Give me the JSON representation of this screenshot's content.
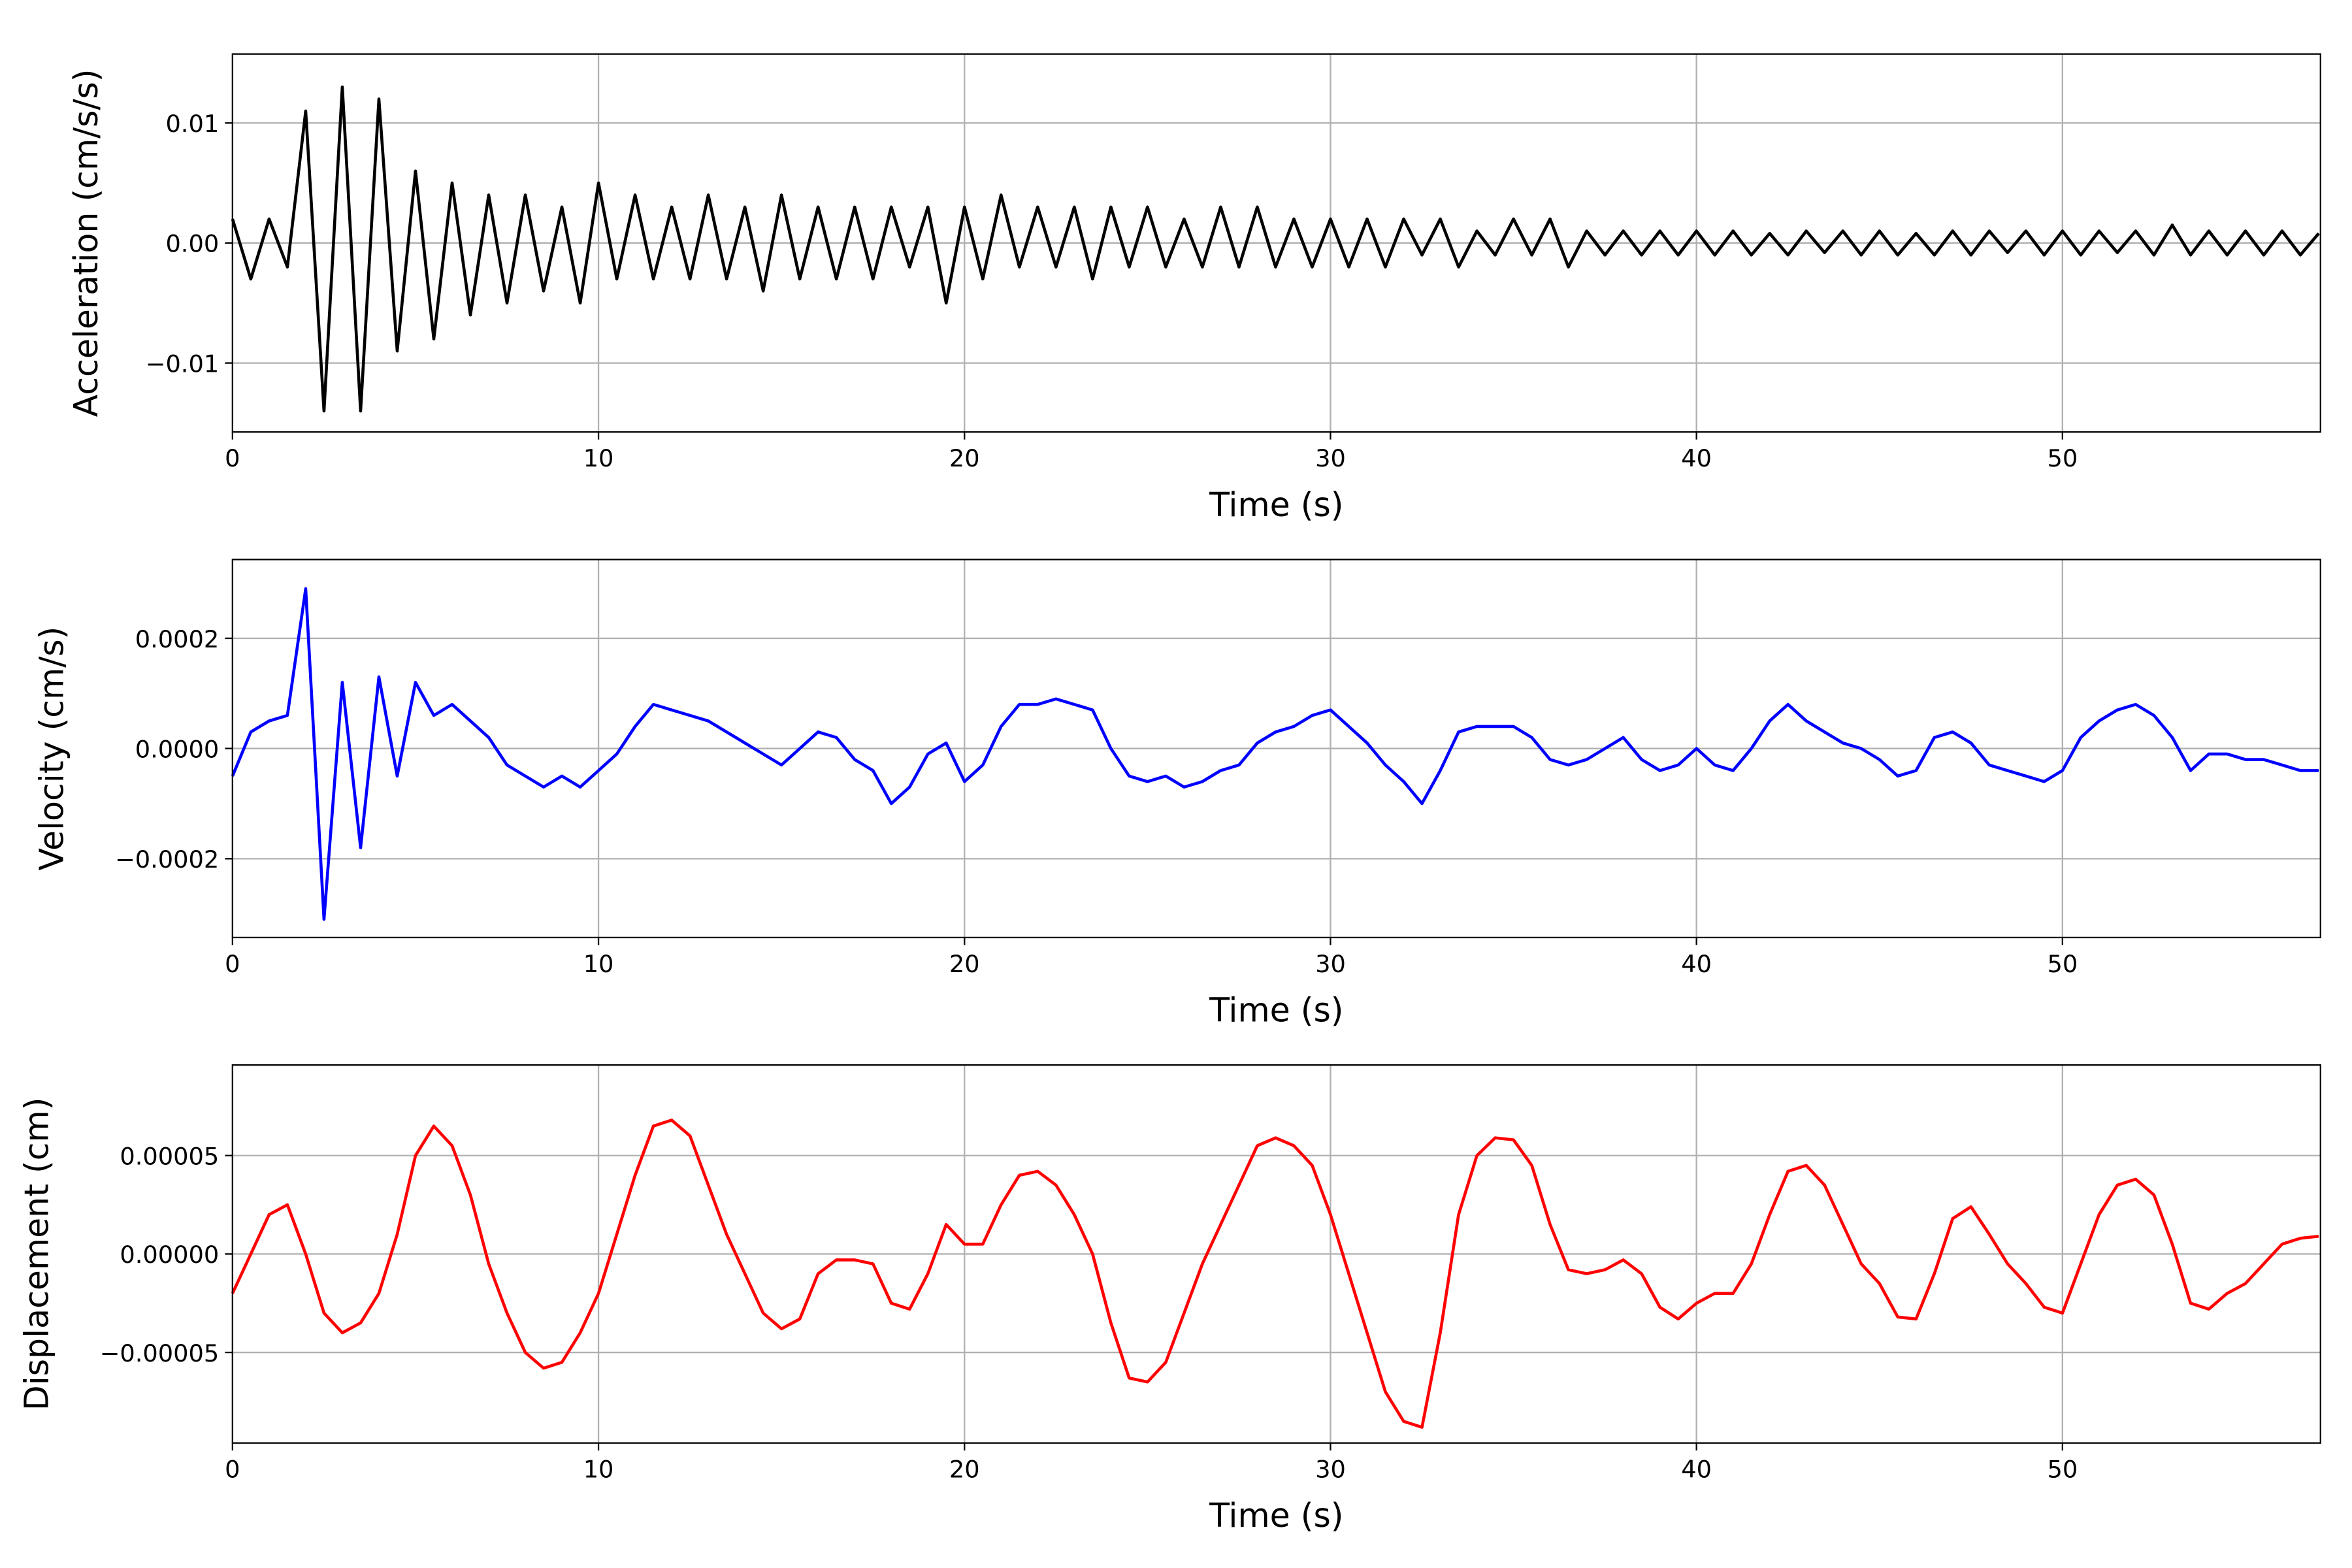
{
  "chart_data": [
    {
      "type": "line",
      "xlabel": "Time (s)",
      "ylabel": "Acceleration (cm/s/s)",
      "color": "#000000",
      "grid": true,
      "xlim": [
        0,
        57.05
      ],
      "ylim": [
        -0.01575,
        0.01575
      ],
      "xticks": [
        0,
        10,
        20,
        30,
        40,
        50
      ],
      "yticks": [
        {
          "value": -0.01,
          "label": "−0.01"
        },
        {
          "value": 0,
          "label": "0.00"
        },
        {
          "value": 0.01,
          "label": "0.01"
        }
      ],
      "x": [
        0,
        0.5,
        1,
        1.5,
        2,
        2.5,
        3,
        3.5,
        4,
        4.5,
        5,
        5.5,
        6,
        6.5,
        7,
        7.5,
        8,
        8.5,
        9,
        9.5,
        10,
        10.5,
        11,
        11.5,
        12,
        12.5,
        13,
        13.5,
        14,
        14.5,
        15,
        15.5,
        16,
        16.5,
        17,
        17.5,
        18,
        18.5,
        19,
        19.5,
        20,
        20.5,
        21,
        21.5,
        22,
        22.5,
        23,
        23.5,
        24,
        24.5,
        25,
        25.5,
        26,
        26.5,
        27,
        27.5,
        28,
        28.5,
        29,
        29.5,
        30,
        30.5,
        31,
        31.5,
        32,
        32.5,
        33,
        33.5,
        34,
        34.5,
        35,
        35.5,
        36,
        36.5,
        37,
        37.5,
        38,
        38.5,
        39,
        39.5,
        40,
        40.5,
        41,
        41.5,
        42,
        42.5,
        43,
        43.5,
        44,
        44.5,
        45,
        45.5,
        46,
        46.5,
        47,
        47.5,
        48,
        48.5,
        49,
        49.5,
        50,
        50.5,
        51,
        51.5,
        52,
        52.5,
        53,
        53.5,
        54,
        54.5,
        55,
        55.5,
        56,
        56.5,
        57
      ],
      "values": [
        0.002,
        -0.003,
        0.002,
        -0.002,
        0.011,
        -0.014,
        0.013,
        -0.014,
        0.012,
        -0.009,
        0.006,
        -0.008,
        0.005,
        -0.006,
        0.004,
        -0.005,
        0.004,
        -0.004,
        0.003,
        -0.005,
        0.005,
        -0.003,
        0.004,
        -0.003,
        0.003,
        -0.003,
        0.004,
        -0.003,
        0.003,
        -0.004,
        0.004,
        -0.003,
        0.003,
        -0.003,
        0.003,
        -0.003,
        0.003,
        -0.002,
        0.003,
        -0.005,
        0.003,
        -0.003,
        0.004,
        -0.002,
        0.003,
        -0.002,
        0.003,
        -0.003,
        0.003,
        -0.002,
        0.003,
        -0.002,
        0.002,
        -0.002,
        0.003,
        -0.002,
        0.003,
        -0.002,
        0.002,
        -0.002,
        0.002,
        -0.002,
        0.002,
        -0.002,
        0.002,
        -0.001,
        0.002,
        -0.002,
        0.001,
        -0.001,
        0.002,
        -0.001,
        0.002,
        -0.002,
        0.001,
        -0.001,
        0.001,
        -0.001,
        0.001,
        -0.001,
        0.001,
        -0.001,
        0.001,
        -0.001,
        0.0008,
        -0.001,
        0.001,
        -0.0008,
        0.001,
        -0.001,
        0.001,
        -0.001,
        0.0008,
        -0.001,
        0.001,
        -0.001,
        0.001,
        -0.0008,
        0.001,
        -0.001,
        0.001,
        -0.001,
        0.001,
        -0.0008,
        0.001,
        -0.001,
        0.0015,
        -0.001,
        0.001,
        -0.001,
        0.001,
        -0.001,
        0.001,
        -0.001,
        0.0008
      ]
    },
    {
      "type": "line",
      "xlabel": "Time (s)",
      "ylabel": "Velocity (cm/s)",
      "color": "#0000ff",
      "grid": true,
      "xlim": [
        0,
        57.05
      ],
      "ylim": [
        -0.000343,
        0.000343
      ],
      "xticks": [
        0,
        10,
        20,
        30,
        40,
        50
      ],
      "yticks": [
        {
          "value": -0.0002,
          "label": "−0.0002"
        },
        {
          "value": 0,
          "label": "0.0000"
        },
        0.0002
      ],
      "x": [
        0,
        0.5,
        1,
        1.5,
        2,
        2.5,
        3,
        3.5,
        4,
        4.5,
        5,
        5.5,
        6,
        6.5,
        7,
        7.5,
        8,
        8.5,
        9,
        9.5,
        10,
        10.5,
        11,
        11.5,
        12,
        12.5,
        13,
        13.5,
        14,
        14.5,
        15,
        15.5,
        16,
        16.5,
        17,
        17.5,
        18,
        18.5,
        19,
        19.5,
        20,
        20.5,
        21,
        21.5,
        22,
        22.5,
        23,
        23.5,
        24,
        24.5,
        25,
        25.5,
        26,
        26.5,
        27,
        27.5,
        28,
        28.5,
        29,
        29.5,
        30,
        30.5,
        31,
        31.5,
        32,
        32.5,
        33,
        33.5,
        34,
        34.5,
        35,
        35.5,
        36,
        36.5,
        37,
        37.5,
        38,
        38.5,
        39,
        39.5,
        40,
        40.5,
        41,
        41.5,
        42,
        42.5,
        43,
        43.5,
        44,
        44.5,
        45,
        45.5,
        46,
        46.5,
        47,
        47.5,
        48,
        48.5,
        49,
        49.5,
        50,
        50.5,
        51,
        51.5,
        52,
        52.5,
        53,
        53.5,
        54,
        54.5,
        55,
        55.5,
        56,
        56.5,
        57
      ],
      "values": [
        -5e-05,
        3e-05,
        5e-05,
        6e-05,
        0.00029,
        -0.00031,
        0.00012,
        -0.00018,
        0.00013,
        -5e-05,
        0.00012,
        6e-05,
        8e-05,
        5e-05,
        2e-05,
        -3e-05,
        -5e-05,
        -7e-05,
        -5e-05,
        -7e-05,
        -4e-05,
        -1e-05,
        4e-05,
        8e-05,
        7e-05,
        6e-05,
        5e-05,
        3e-05,
        1e-05,
        -1e-05,
        -3e-05,
        0,
        3e-05,
        2e-05,
        -2e-05,
        -4e-05,
        -0.0001,
        -7e-05,
        -1e-05,
        1e-05,
        -6e-05,
        -3e-05,
        4e-05,
        8e-05,
        8e-05,
        9e-05,
        8e-05,
        7e-05,
        0,
        -5e-05,
        -6e-05,
        -5e-05,
        -7e-05,
        -6e-05,
        -4e-05,
        -3e-05,
        1e-05,
        3e-05,
        4e-05,
        6e-05,
        7e-05,
        4e-05,
        1e-05,
        -3e-05,
        -6e-05,
        -0.0001,
        -4e-05,
        3e-05,
        4e-05,
        4e-05,
        4e-05,
        2e-05,
        -2e-05,
        -3e-05,
        -2e-05,
        0,
        2e-05,
        -2e-05,
        -4e-05,
        -3e-05,
        0,
        -3e-05,
        -4e-05,
        0,
        5e-05,
        8e-05,
        5e-05,
        3e-05,
        1e-05,
        0,
        -2e-05,
        -5e-05,
        -4e-05,
        2e-05,
        3e-05,
        1e-05,
        -3e-05,
        -4e-05,
        -5e-05,
        -6e-05,
        -4e-05,
        2e-05,
        5e-05,
        7e-05,
        8e-05,
        6e-05,
        2e-05,
        -4e-05,
        -1e-05,
        -1e-05,
        -2e-05,
        -2e-05,
        -3e-05,
        -4e-05,
        -4e-05
      ]
    },
    {
      "type": "line",
      "xlabel": "Time (s)",
      "ylabel": "Displacement (cm)",
      "color": "#ff0000",
      "grid": true,
      "xlim": [
        0,
        57.05
      ],
      "ylim": [
        -9.6e-05,
        9.6e-05
      ],
      "xticks": [
        0,
        10,
        20,
        30,
        40,
        50
      ],
      "yticks": [
        {
          "value": -5e-05,
          "label": "−0.00005"
        },
        {
          "value": 0,
          "label": "0.00000"
        },
        {
          "value": 5e-05,
          "label": "0.00005"
        }
      ],
      "x": [
        0,
        0.5,
        1,
        1.5,
        2,
        2.5,
        3,
        3.5,
        4,
        4.5,
        5,
        5.5,
        6,
        6.5,
        7,
        7.5,
        8,
        8.5,
        9,
        9.5,
        10,
        10.5,
        11,
        11.5,
        12,
        12.5,
        13,
        13.5,
        14,
        14.5,
        15,
        15.5,
        16,
        16.5,
        17,
        17.5,
        18,
        18.5,
        19,
        19.5,
        20,
        20.5,
        21,
        21.5,
        22,
        22.5,
        23,
        23.5,
        24,
        24.5,
        25,
        25.5,
        26,
        26.5,
        27,
        27.5,
        28,
        28.5,
        29,
        29.5,
        30,
        30.5,
        31,
        31.5,
        32,
        32.5,
        33,
        33.5,
        34,
        34.5,
        35,
        35.5,
        36,
        36.5,
        37,
        37.5,
        38,
        38.5,
        39,
        39.5,
        40,
        40.5,
        41,
        41.5,
        42,
        42.5,
        43,
        43.5,
        44,
        44.5,
        45,
        45.5,
        46,
        46.5,
        47,
        47.5,
        48,
        48.5,
        49,
        49.5,
        50,
        50.5,
        51,
        51.5,
        52,
        52.5,
        53,
        53.5,
        54,
        54.5,
        55,
        55.5,
        56,
        56.5,
        57
      ],
      "values": [
        -2e-05,
        0,
        2e-05,
        2.5e-05,
        0,
        -3e-05,
        -4e-05,
        -3.5e-05,
        -2e-05,
        1e-05,
        5e-05,
        6.5e-05,
        5.5e-05,
        3e-05,
        -5e-06,
        -3e-05,
        -5e-05,
        -5.8e-05,
        -5.5e-05,
        -4e-05,
        -2e-05,
        1e-05,
        4e-05,
        6.5e-05,
        6.8e-05,
        6e-05,
        3.5e-05,
        1e-05,
        -1e-05,
        -3e-05,
        -3.8e-05,
        -3.3e-05,
        -1e-05,
        -3e-06,
        -3e-06,
        -5e-06,
        -2.5e-05,
        -2.8e-05,
        -1e-05,
        1.5e-05,
        5e-06,
        5e-06,
        2.5e-05,
        4e-05,
        4.2e-05,
        3.5e-05,
        2e-05,
        0,
        -3.5e-05,
        -6.3e-05,
        -6.5e-05,
        -5.5e-05,
        -3e-05,
        -5e-06,
        1.5e-05,
        3.5e-05,
        5.5e-05,
        5.9e-05,
        5.5e-05,
        4.5e-05,
        2e-05,
        -1e-05,
        -4e-05,
        -7e-05,
        -8.5e-05,
        -8.8e-05,
        -4e-05,
        2e-05,
        5e-05,
        5.9e-05,
        5.8e-05,
        4.5e-05,
        1.5e-05,
        -8e-06,
        -1e-05,
        -8e-06,
        -3e-06,
        -1e-05,
        -2.7e-05,
        -3.3e-05,
        -2.5e-05,
        -2e-05,
        -2e-05,
        -5e-06,
        2e-05,
        4.2e-05,
        4.5e-05,
        3.5e-05,
        1.5e-05,
        -5e-06,
        -1.5e-05,
        -3.2e-05,
        -3.3e-05,
        -1e-05,
        1.8e-05,
        2.4e-05,
        1e-05,
        -5e-06,
        -1.5e-05,
        -2.7e-05,
        -3e-05,
        -5e-06,
        2e-05,
        3.5e-05,
        3.8e-05,
        3e-05,
        5e-06,
        -2.5e-05,
        -2.8e-05,
        -2e-05,
        -1.5e-05,
        -5e-06,
        5e-06,
        8e-06,
        9e-06
      ]
    }
  ]
}
